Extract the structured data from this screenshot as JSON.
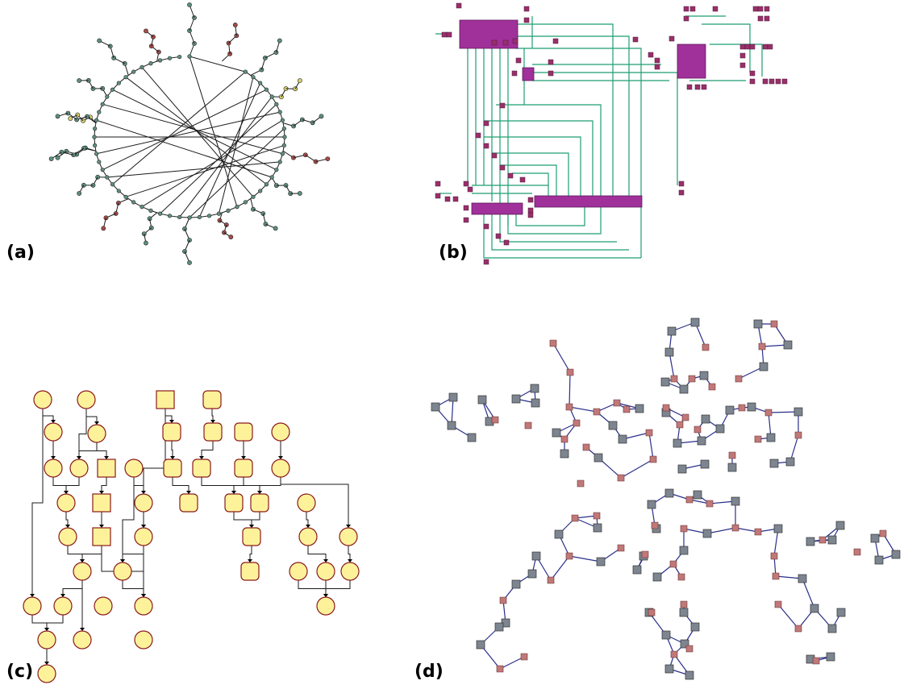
{
  "panels": [
    {
      "id": "a",
      "label": "(a)"
    },
    {
      "id": "b",
      "label": "(b)"
    },
    {
      "id": "c",
      "label": "(c)"
    },
    {
      "id": "d",
      "label": "(d)"
    }
  ],
  "colors": {
    "a_node_main": "#5f8f7f",
    "a_node_yellow": "#d8d070",
    "a_node_red": "#a84a4a",
    "b_block": "#a0309a",
    "b_small": "#9a2f6a",
    "b_wire": "#1f9e72",
    "c_fill": "#fdf29a",
    "c_stroke": "#8b1a1a",
    "d_square": "#7d8590",
    "d_pyramid": "#c07878",
    "d_edge": "#2a2f8a"
  }
}
